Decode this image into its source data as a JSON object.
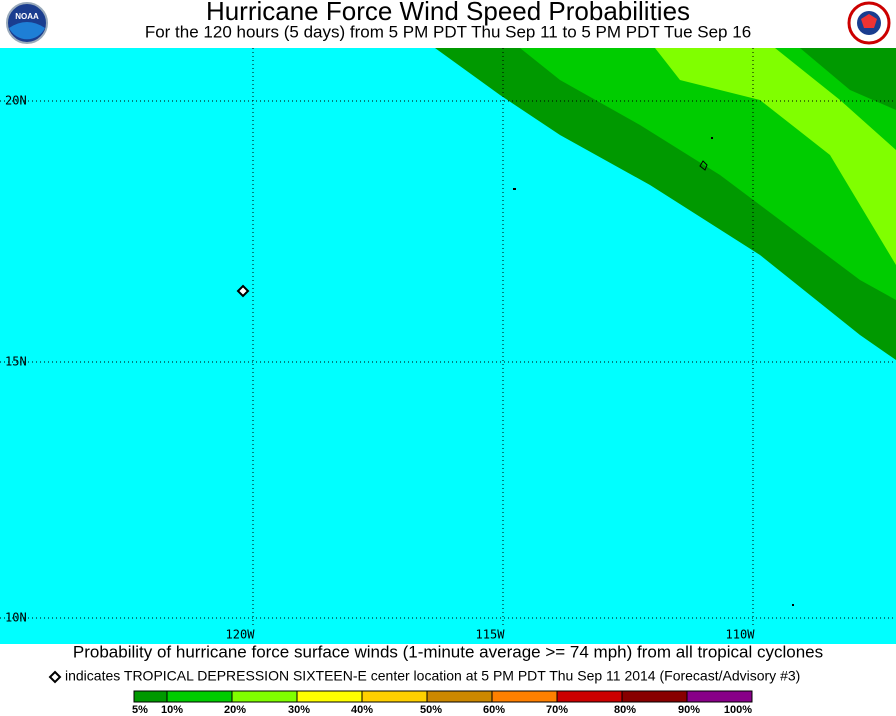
{
  "header": {
    "title": "Hurricane Force Wind Speed Probabilities",
    "subtitle": "For the 120 hours (5 days) from 5 PM PDT Thu Sep 11 to 5 PM PDT Tue Sep 16",
    "logo_left": "NOAA"
  },
  "map": {
    "lat_labels": [
      "20N",
      "15N",
      "10N"
    ],
    "lon_labels": [
      "120W",
      "115W",
      "110W"
    ]
  },
  "footer": {
    "caption": "Probability of hurricane force surface winds (1-minute average >= 74 mph) from all tropical cyclones",
    "note": "indicates TROPICAL DEPRESSION SIXTEEN-E center location at 5 PM PDT Thu Sep 11 2014 (Forecast/Advisory #3)",
    "legend": [
      "5%",
      "10%",
      "20%",
      "30%",
      "40%",
      "50%",
      "60%",
      "70%",
      "80%",
      "90%",
      "100%"
    ]
  }
}
